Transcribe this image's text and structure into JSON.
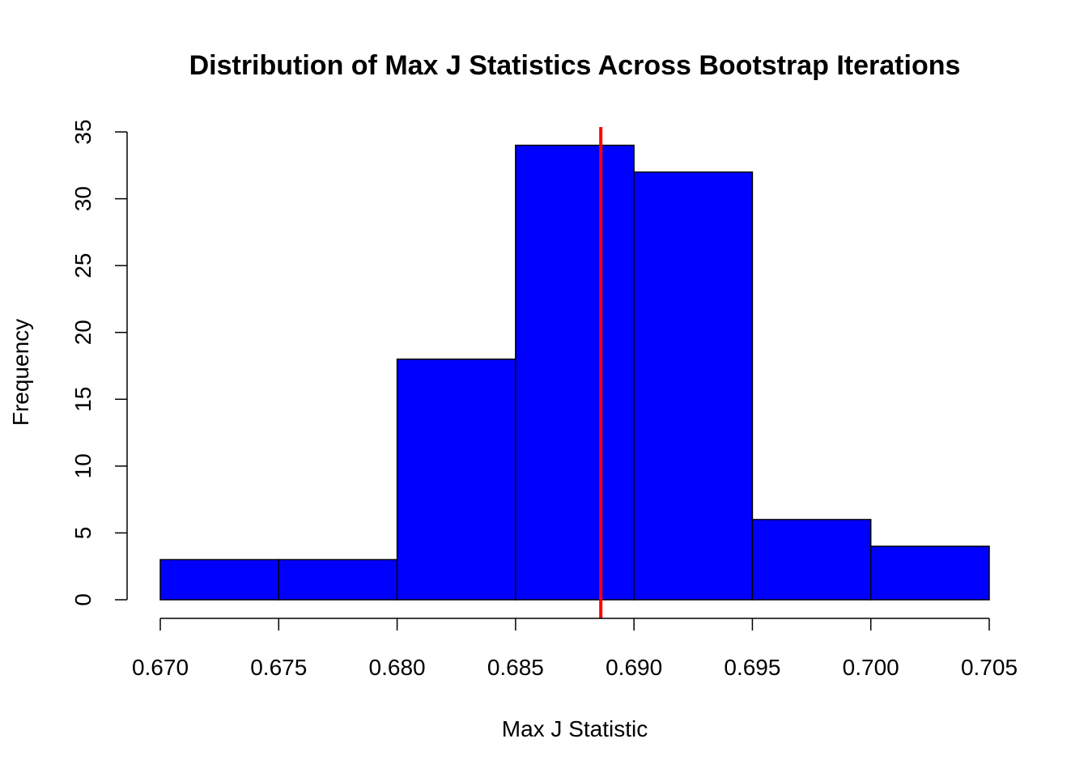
{
  "chart_data": {
    "type": "histogram",
    "title": "Distribution of Max J Statistics Across Bootstrap Iterations",
    "xlabel": "Max J Statistic",
    "ylabel": "Frequency",
    "bins": [
      {
        "start": 0.67,
        "end": 0.675,
        "count": 3
      },
      {
        "start": 0.675,
        "end": 0.68,
        "count": 3
      },
      {
        "start": 0.68,
        "end": 0.685,
        "count": 18
      },
      {
        "start": 0.685,
        "end": 0.69,
        "count": 34
      },
      {
        "start": 0.69,
        "end": 0.695,
        "count": 32
      },
      {
        "start": 0.695,
        "end": 0.7,
        "count": 6
      },
      {
        "start": 0.7,
        "end": 0.705,
        "count": 4
      }
    ],
    "xlim": [
      0.67,
      0.705
    ],
    "ylim": [
      0,
      35
    ],
    "x_ticks": [
      0.67,
      0.675,
      0.68,
      0.685,
      0.69,
      0.695,
      0.7,
      0.705
    ],
    "x_tick_labels": [
      "0.670",
      "0.675",
      "0.680",
      "0.685",
      "0.690",
      "0.695",
      "0.700",
      "0.705"
    ],
    "y_ticks": [
      0,
      5,
      10,
      15,
      20,
      25,
      30,
      35
    ],
    "y_tick_labels": [
      "0",
      "5",
      "10",
      "15",
      "20",
      "25",
      "30",
      "35"
    ],
    "reference_line": {
      "x": 0.6886,
      "color": "#ff0000"
    },
    "bar_color": "#0000ff",
    "grid": false
  }
}
